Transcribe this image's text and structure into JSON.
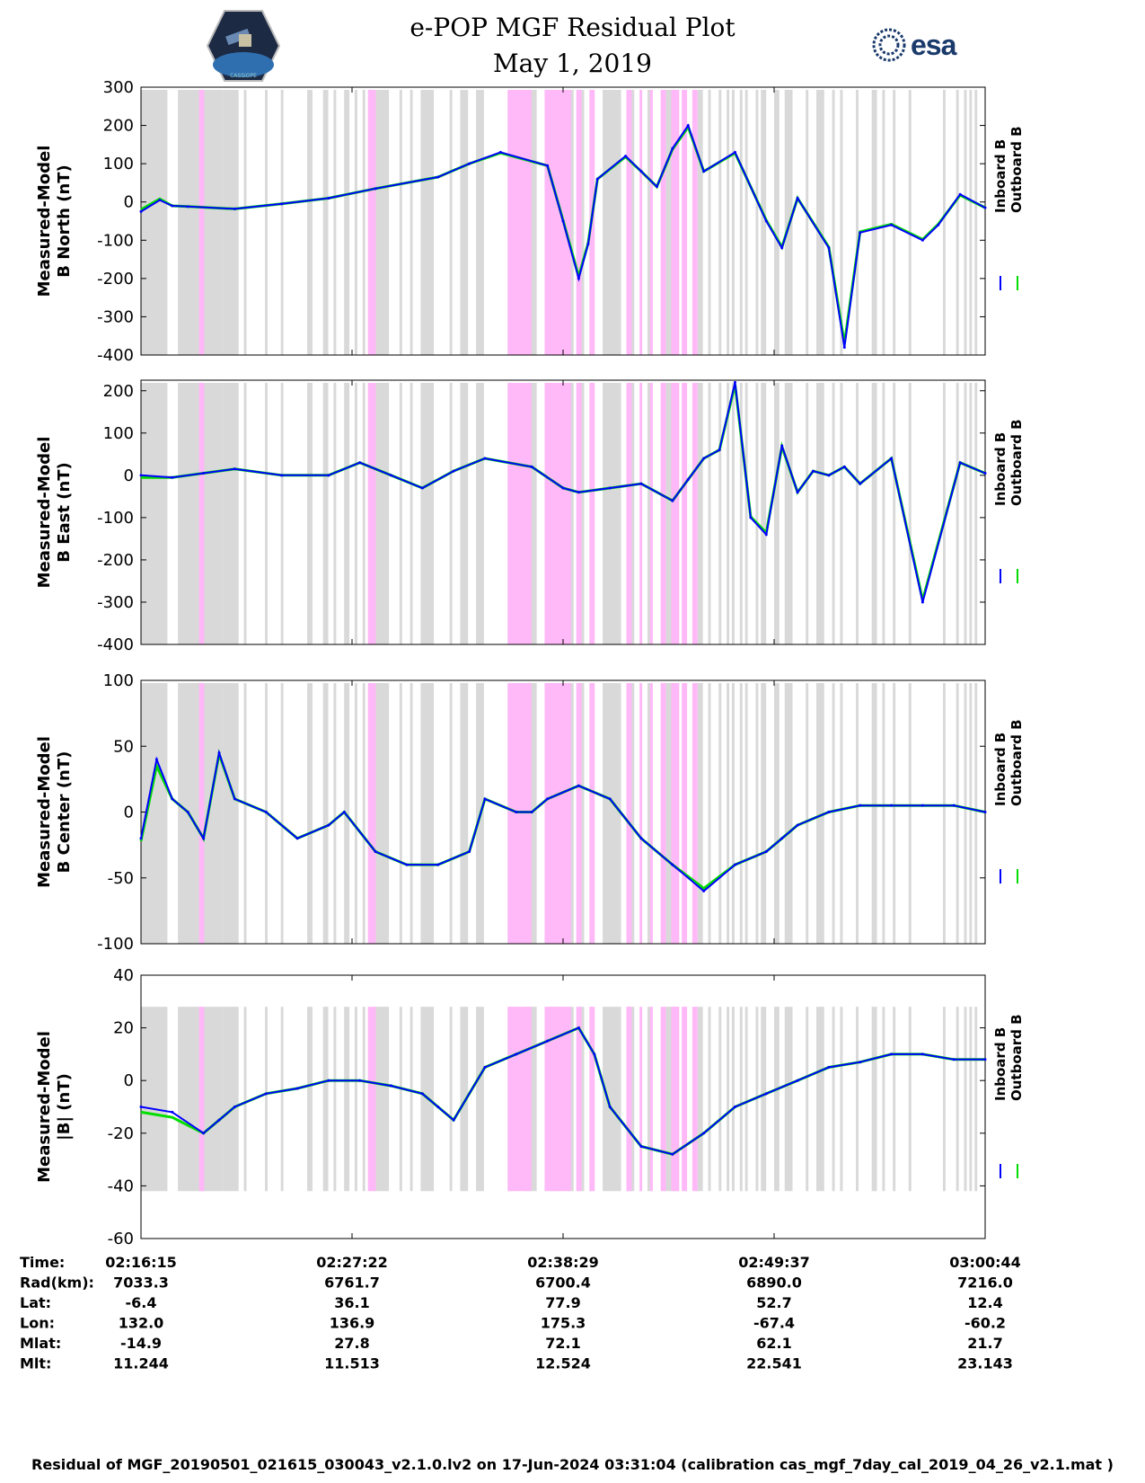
{
  "header": {
    "title": "e-POP MGF Residual Plot",
    "date": "May 1, 2019",
    "logo_left_text": "CASSIOPE",
    "logo_right_text": "esa"
  },
  "colors": {
    "inboard": "#0000ff",
    "outboard": "#00dd00",
    "gray_band": "#d9d9d9",
    "pink_band": "#ffb8f8"
  },
  "chart_data": [
    {
      "type": "line",
      "ylabel": [
        "Measured-Model",
        "B North (nT)"
      ],
      "ylim": [
        -400,
        300
      ],
      "yticks": [
        -400,
        -300,
        -200,
        -100,
        0,
        100,
        200,
        300
      ],
      "legend": [
        "Inboard B",
        "Outboard B"
      ],
      "x": [
        0,
        6,
        10,
        15,
        30,
        45,
        60,
        75,
        95,
        105,
        115,
        130,
        135,
        140,
        143,
        146,
        155,
        160,
        165,
        170,
        175,
        180,
        190,
        200,
        205,
        210,
        220,
        225,
        230,
        240,
        250,
        255,
        262,
        270
      ],
      "inboard": [
        -25,
        5,
        -10,
        -12,
        -18,
        -5,
        10,
        35,
        65,
        100,
        130,
        95,
        -50,
        -200,
        -110,
        60,
        120,
        80,
        40,
        140,
        200,
        80,
        130,
        -50,
        -120,
        10,
        -120,
        -380,
        -80,
        -60,
        -100,
        -60,
        20,
        -15
      ],
      "outboard": [
        -20,
        8,
        -10,
        -12,
        -18,
        -5,
        10,
        35,
        65,
        100,
        128,
        95,
        -48,
        -195,
        -108,
        60,
        118,
        80,
        40,
        138,
        196,
        80,
        128,
        -48,
        -118,
        10,
        -118,
        -370,
        -78,
        -58,
        -98,
        -58,
        18,
        -15
      ]
    },
    {
      "type": "line",
      "ylabel": [
        "Measured-Model",
        "B East (nT)"
      ],
      "ylim": [
        -400,
        225
      ],
      "yticks": [
        -400,
        -300,
        -200,
        -100,
        0,
        100,
        200
      ],
      "legend": [
        "Inboard B",
        "Outboard B"
      ],
      "x": [
        0,
        10,
        20,
        30,
        45,
        60,
        70,
        80,
        90,
        100,
        110,
        125,
        135,
        140,
        150,
        160,
        170,
        175,
        180,
        185,
        190,
        195,
        200,
        205,
        210,
        215,
        220,
        225,
        230,
        240,
        250,
        262,
        270
      ],
      "inboard": [
        0,
        -5,
        5,
        15,
        0,
        0,
        30,
        0,
        -30,
        10,
        40,
        20,
        -30,
        -40,
        -30,
        -20,
        -60,
        -10,
        40,
        60,
        220,
        -100,
        -140,
        70,
        -40,
        10,
        0,
        20,
        -20,
        40,
        -300,
        30,
        5
      ],
      "outboard": [
        -5,
        -5,
        5,
        15,
        0,
        0,
        30,
        0,
        -30,
        10,
        40,
        20,
        -30,
        -40,
        -30,
        -20,
        -60,
        -10,
        40,
        60,
        215,
        -98,
        -136,
        68,
        -40,
        10,
        0,
        20,
        -20,
        40,
        -295,
        30,
        5
      ]
    },
    {
      "type": "line",
      "ylabel": [
        "Measured-Model",
        "B Center (nT)"
      ],
      "ylim": [
        -100,
        100
      ],
      "yticks": [
        -100,
        -50,
        0,
        50,
        100
      ],
      "legend": [
        "Inboard B",
        "Outboard B"
      ],
      "x": [
        0,
        5,
        10,
        15,
        20,
        25,
        30,
        40,
        50,
        60,
        65,
        75,
        85,
        95,
        105,
        110,
        120,
        125,
        130,
        140,
        150,
        160,
        170,
        180,
        190,
        200,
        205,
        210,
        220,
        230,
        240,
        250,
        260,
        270
      ],
      "inboard": [
        -20,
        40,
        10,
        0,
        -20,
        45,
        10,
        0,
        -20,
        -10,
        0,
        -30,
        -40,
        -40,
        -30,
        10,
        0,
        0,
        10,
        20,
        10,
        -20,
        -40,
        -60,
        -40,
        -30,
        -20,
        -10,
        0,
        5,
        5,
        5,
        5,
        0
      ],
      "outboard": [
        -22,
        35,
        10,
        0,
        -20,
        44,
        10,
        0,
        -20,
        -10,
        0,
        -30,
        -40,
        -40,
        -30,
        10,
        0,
        0,
        10,
        20,
        10,
        -20,
        -40,
        -58,
        -40,
        -30,
        -20,
        -10,
        0,
        5,
        5,
        5,
        5,
        0
      ]
    },
    {
      "type": "line",
      "ylabel": [
        "Measured-Model",
        "|B| (nT)"
      ],
      "ylim": [
        -60,
        40
      ],
      "yticks": [
        -60,
        -40,
        -20,
        0,
        20,
        40
      ],
      "legend": [
        "Inboard B",
        "Outboard B"
      ],
      "x": [
        0,
        10,
        20,
        25,
        30,
        40,
        50,
        60,
        70,
        80,
        90,
        95,
        100,
        110,
        120,
        130,
        140,
        145,
        150,
        160,
        170,
        180,
        190,
        200,
        210,
        220,
        230,
        240,
        250,
        260,
        270
      ],
      "inboard": [
        -10,
        -12,
        -20,
        -15,
        -10,
        -5,
        -3,
        0,
        0,
        -2,
        -5,
        -10,
        -15,
        5,
        10,
        15,
        20,
        10,
        -10,
        -25,
        -28,
        -20,
        -10,
        -5,
        0,
        5,
        7,
        10,
        10,
        8,
        8
      ],
      "outboard": [
        -12,
        -14,
        -20,
        -15,
        -10,
        -5,
        -3,
        0,
        0,
        -2,
        -5,
        -10,
        -15,
        5,
        10,
        15,
        20,
        10,
        -10,
        -25,
        -28,
        -20,
        -10,
        -5,
        0,
        5,
        7,
        10,
        10,
        8,
        8
      ]
    }
  ],
  "bands": {
    "gray": [
      [
        0,
        10
      ],
      [
        14,
        31
      ],
      [
        31,
        37
      ],
      [
        39,
        40
      ],
      [
        47,
        48
      ],
      [
        53,
        54
      ],
      [
        63,
        65
      ],
      [
        69,
        71
      ],
      [
        73,
        74
      ],
      [
        77,
        79
      ],
      [
        81,
        82
      ],
      [
        84,
        85
      ],
      [
        88,
        94
      ],
      [
        98,
        99
      ],
      [
        102,
        103
      ],
      [
        106,
        111
      ],
      [
        117,
        118
      ],
      [
        121,
        124
      ],
      [
        127,
        130
      ],
      [
        139,
        141
      ],
      [
        145,
        150
      ],
      [
        155,
        159
      ],
      [
        161,
        164
      ],
      [
        167,
        168
      ],
      [
        170,
        171
      ],
      [
        175,
        182
      ],
      [
        184,
        187
      ],
      [
        192,
        193
      ],
      [
        199,
        204
      ],
      [
        206,
        207
      ],
      [
        211,
        213
      ],
      [
        215,
        216
      ],
      [
        219,
        220
      ],
      [
        222,
        223
      ],
      [
        224,
        225
      ],
      [
        227,
        228
      ],
      [
        229,
        230
      ],
      [
        233,
        234
      ],
      [
        235,
        237
      ],
      [
        240,
        242
      ],
      [
        244,
        247
      ],
      [
        252,
        253
      ],
      [
        256,
        259
      ],
      [
        262,
        263
      ],
      [
        265,
        266
      ],
      [
        271,
        272
      ],
      [
        277,
        279
      ],
      [
        281,
        282
      ],
      [
        285,
        286
      ],
      [
        291,
        292
      ],
      [
        304,
        305
      ],
      [
        309,
        310
      ],
      [
        312,
        313
      ],
      [
        314,
        315
      ],
      [
        316,
        317
      ]
    ],
    "pink": [
      [
        22,
        24
      ],
      [
        86,
        89
      ],
      [
        139,
        148
      ],
      [
        153,
        163
      ],
      [
        165,
        167
      ],
      [
        170,
        172
      ],
      [
        184,
        186
      ],
      [
        189,
        190
      ],
      [
        193,
        194
      ],
      [
        197,
        199
      ],
      [
        201,
        204
      ],
      [
        205,
        207
      ],
      [
        209,
        211
      ]
    ]
  },
  "x_axis": {
    "rows": [
      {
        "label": "Time:",
        "values": [
          "02:16:15",
          "02:27:22",
          "02:38:29",
          "02:49:37",
          "03:00:44"
        ]
      },
      {
        "label": "Rad(km):",
        "values": [
          "7033.3",
          "6761.7",
          "6700.4",
          "6890.0",
          "7216.0"
        ]
      },
      {
        "label": "Lat:",
        "values": [
          "-6.4",
          "36.1",
          "77.9",
          "52.7",
          "12.4"
        ]
      },
      {
        "label": "Lon:",
        "values": [
          "132.0",
          "136.9",
          "175.3",
          "-67.4",
          "-60.2"
        ]
      },
      {
        "label": "Mlat:",
        "values": [
          "-14.9",
          "27.8",
          "72.1",
          "62.1",
          "21.7"
        ]
      },
      {
        "label": "Mlt:",
        "values": [
          "11.244",
          "11.513",
          "12.524",
          "22.541",
          "23.143"
        ]
      }
    ]
  },
  "footer": "Residual of MGF_20190501_021615_030043_v2.1.0.lv2 on 17-Jun-2024 03:31:04 (calibration cas_mgf_7day_cal_2019_04_26_v2.1.mat )"
}
